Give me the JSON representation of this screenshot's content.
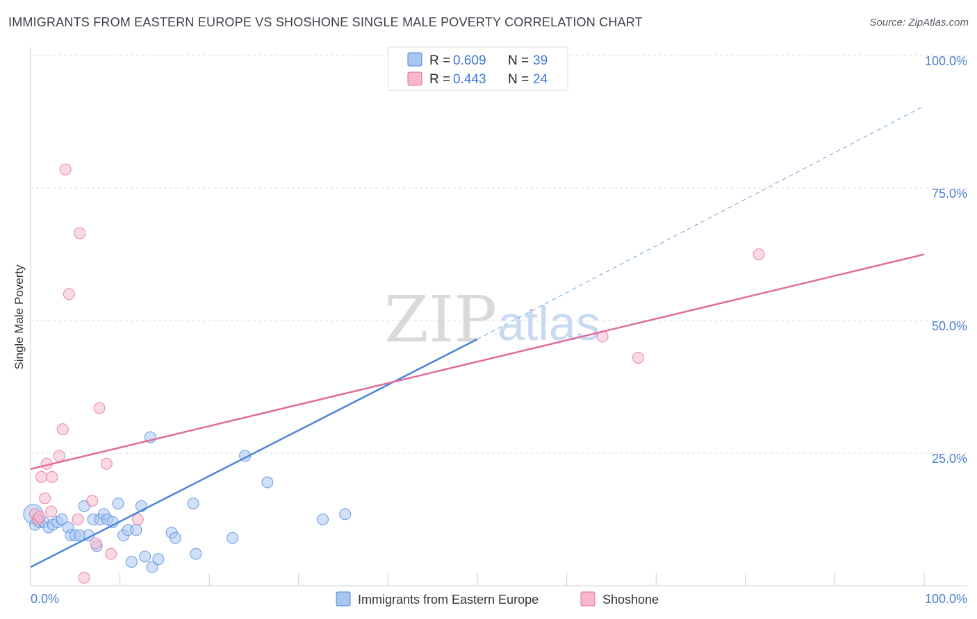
{
  "title": "IMMIGRANTS FROM EASTERN EUROPE VS SHOSHONE SINGLE MALE POVERTY CORRELATION CHART",
  "source": "Source: ZipAtlas.com",
  "watermark": {
    "zip": "ZIP",
    "atlas": "atlas"
  },
  "legend_box": [
    {
      "r_label": "R = ",
      "r_value": "0.609",
      "n_label": "N = ",
      "n_value": "39",
      "color": "#a9c6f2"
    },
    {
      "r_label": "R = ",
      "r_value": "0.443",
      "n_label": "N = ",
      "n_value": "24",
      "color": "#f6b9cc"
    }
  ],
  "chart_data": {
    "type": "scatter",
    "title": "IMMIGRANTS FROM EASTERN EUROPE VS SHOSHONE SINGLE MALE POVERTY CORRELATION CHART",
    "xlabel": "",
    "ylabel": "Single Male Poverty",
    "xlim": [
      0,
      100
    ],
    "ylim": [
      0,
      100
    ],
    "x_tick_labels": [
      "0.0%",
      "100.0%"
    ],
    "y_ticks": [
      25,
      50,
      75,
      100
    ],
    "y_tick_labels": [
      "25.0%",
      "50.0%",
      "75.0%",
      "100.0%"
    ],
    "grid": true,
    "legend_position": "bottom-center",
    "series": [
      {
        "name": "Immigrants from Eastern Europe",
        "color": "#4a86d8",
        "fill": "#a9c6f2",
        "trend": {
          "x0": 0,
          "y0": 3.5,
          "x1": 50,
          "y1": 46.5,
          "dash_to_x": 100,
          "dash_to_y": 90.5
        },
        "points": [
          [
            0.3,
            13.5
          ],
          [
            0.5,
            11.5
          ],
          [
            1.0,
            12.0
          ],
          [
            1.5,
            12.0
          ],
          [
            2.0,
            11.0
          ],
          [
            2.5,
            11.5
          ],
          [
            3.0,
            12.0
          ],
          [
            3.5,
            12.5
          ],
          [
            4.2,
            11.0
          ],
          [
            4.5,
            9.5
          ],
          [
            5.0,
            9.5
          ],
          [
            5.5,
            9.5
          ],
          [
            6.0,
            15.0
          ],
          [
            6.5,
            9.5
          ],
          [
            7.0,
            12.5
          ],
          [
            7.4,
            7.5
          ],
          [
            7.8,
            12.5
          ],
          [
            8.2,
            13.5
          ],
          [
            8.6,
            12.5
          ],
          [
            9.2,
            12.0
          ],
          [
            9.8,
            15.5
          ],
          [
            10.4,
            9.5
          ],
          [
            10.9,
            10.5
          ],
          [
            11.3,
            4.5
          ],
          [
            11.8,
            10.5
          ],
          [
            12.4,
            15.0
          ],
          [
            12.8,
            5.5
          ],
          [
            13.4,
            28.0
          ],
          [
            13.6,
            3.5
          ],
          [
            14.3,
            5.0
          ],
          [
            15.8,
            10.0
          ],
          [
            16.2,
            9.0
          ],
          [
            18.5,
            6.0
          ],
          [
            18.2,
            15.5
          ],
          [
            22.6,
            9.0
          ],
          [
            24.0,
            24.5
          ],
          [
            26.5,
            19.5
          ],
          [
            32.7,
            12.5
          ],
          [
            35.2,
            13.5
          ]
        ]
      },
      {
        "name": "Shoshone",
        "color": "#e06c9a",
        "fill": "#f6b9cc",
        "trend": {
          "x0": 0,
          "y0": 22.0,
          "x1": 100,
          "y1": 62.5
        },
        "points": [
          [
            0.5,
            13.5
          ],
          [
            0.8,
            12.5
          ],
          [
            1.2,
            20.5
          ],
          [
            1.6,
            16.5
          ],
          [
            1.8,
            23.0
          ],
          [
            2.3,
            14.0
          ],
          [
            2.4,
            20.5
          ],
          [
            3.2,
            24.5
          ],
          [
            3.6,
            29.5
          ],
          [
            3.9,
            78.5
          ],
          [
            4.3,
            55.0
          ],
          [
            5.5,
            66.5
          ],
          [
            5.3,
            12.5
          ],
          [
            6.0,
            1.5
          ],
          [
            6.9,
            16.0
          ],
          [
            7.3,
            8.0
          ],
          [
            7.7,
            33.5
          ],
          [
            8.5,
            23.0
          ],
          [
            9.0,
            6.0
          ],
          [
            12.0,
            12.5
          ],
          [
            64.0,
            47.0
          ],
          [
            68.0,
            43.0
          ],
          [
            81.5,
            62.5
          ],
          [
            1.0,
            13.0
          ]
        ]
      }
    ]
  }
}
